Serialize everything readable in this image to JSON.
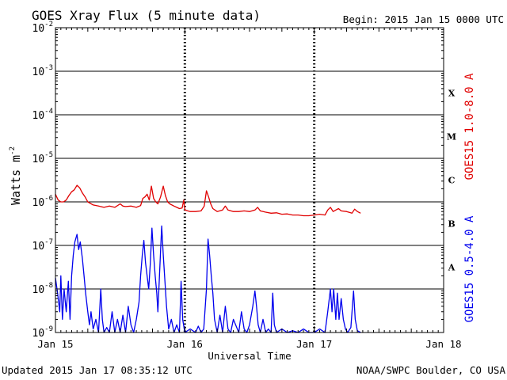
{
  "chart_data": {
    "type": "line",
    "title": "GOES Xray Flux (5 minute data)",
    "begin_label": "Begin:  2015 Jan 15 0000 UTC",
    "xlabel": "Universal Time",
    "ylabel_main": "Watts m",
    "ylabel_exp": "-2",
    "footer_left": "Updated 2015 Jan 17 08:35:12 UTC",
    "footer_right": "NOAA/SWPC Boulder, CO USA",
    "x_unit": "hours since 2015 Jan 15 0000 UTC",
    "xlim": [
      0,
      72
    ],
    "ylim": [
      1e-09,
      0.01
    ],
    "y_scale": "log",
    "x_ticks": [
      {
        "x": 0,
        "label": "Jan 15"
      },
      {
        "x": 24,
        "label": "Jan 16"
      },
      {
        "x": 48,
        "label": "Jan 17"
      },
      {
        "x": 72,
        "label": "Jan 18"
      }
    ],
    "y_ticks": [
      {
        "exp": -9,
        "base": "10",
        "sup": "-9"
      },
      {
        "exp": -8,
        "base": "10",
        "sup": "-8"
      },
      {
        "exp": -7,
        "base": "10",
        "sup": "-7"
      },
      {
        "exp": -6,
        "base": "10",
        "sup": "-6"
      },
      {
        "exp": -5,
        "base": "10",
        "sup": "-5"
      },
      {
        "exp": -4,
        "base": "10",
        "sup": "-4"
      },
      {
        "exp": -3,
        "base": "10",
        "sup": "-3"
      },
      {
        "exp": -2,
        "base": "10",
        "sup": "-2"
      }
    ],
    "flare_classes": [
      {
        "label": "A",
        "exp": -7.5
      },
      {
        "label": "B",
        "exp": -6.5
      },
      {
        "label": "C",
        "exp": -5.5
      },
      {
        "label": "M",
        "exp": -4.5
      },
      {
        "label": "X",
        "exp": -3.5
      }
    ],
    "grid": {
      "horizontal": true,
      "day_dividers": [
        24,
        48
      ]
    },
    "series": [
      {
        "name": "GOES15 1.0-8.0 A",
        "color": "#e00000",
        "points": [
          [
            0.0,
            1.5e-06
          ],
          [
            0.5,
            1.1e-06
          ],
          [
            1.0,
            1e-06
          ],
          [
            1.5,
            1e-06
          ],
          [
            2.0,
            1.1e-06
          ],
          [
            2.5,
            1.4e-06
          ],
          [
            3.0,
            1.7e-06
          ],
          [
            3.5,
            1.9e-06
          ],
          [
            4.0,
            2.4e-06
          ],
          [
            4.5,
            2.1e-06
          ],
          [
            5.0,
            1.6e-06
          ],
          [
            5.5,
            1.3e-06
          ],
          [
            6.0,
            1e-06
          ],
          [
            7.0,
            8.5e-07
          ],
          [
            8.0,
            8e-07
          ],
          [
            9.0,
            7.5e-07
          ],
          [
            10.0,
            8e-07
          ],
          [
            11.0,
            7.5e-07
          ],
          [
            12.0,
            9e-07
          ],
          [
            12.5,
            8e-07
          ],
          [
            13.0,
            7.8e-07
          ],
          [
            14.0,
            8e-07
          ],
          [
            15.0,
            7.5e-07
          ],
          [
            15.8,
            8.2e-07
          ],
          [
            16.2,
            1.2e-06
          ],
          [
            16.6,
            1.3e-06
          ],
          [
            17.0,
            1.5e-06
          ],
          [
            17.4,
            1.1e-06
          ],
          [
            17.8,
            2.3e-06
          ],
          [
            18.2,
            1.2e-06
          ],
          [
            18.6,
            1e-06
          ],
          [
            19.0,
            9e-07
          ],
          [
            19.5,
            1.3e-06
          ],
          [
            20.0,
            2.3e-06
          ],
          [
            20.4,
            1.4e-06
          ],
          [
            20.8,
            1e-06
          ],
          [
            21.2,
            9e-07
          ],
          [
            22.0,
            8e-07
          ],
          [
            22.5,
            7.5e-07
          ],
          [
            23.0,
            7e-07
          ],
          [
            23.5,
            7.2e-07
          ],
          [
            23.8,
            1.1e-06
          ],
          [
            24.0,
            6.5e-07
          ],
          [
            25.0,
            6e-07
          ],
          [
            26.0,
            6e-07
          ],
          [
            27.0,
            6.2e-07
          ],
          [
            27.6,
            8e-07
          ],
          [
            28.0,
            1.8e-06
          ],
          [
            28.4,
            1.3e-06
          ],
          [
            28.8,
            9e-07
          ],
          [
            29.2,
            7e-07
          ],
          [
            30.0,
            6e-07
          ],
          [
            31.0,
            6.5e-07
          ],
          [
            31.5,
            8e-07
          ],
          [
            32.0,
            6.5e-07
          ],
          [
            33.0,
            6e-07
          ],
          [
            34.0,
            6e-07
          ],
          [
            35.0,
            6.2e-07
          ],
          [
            36.0,
            6e-07
          ],
          [
            37.0,
            6.5e-07
          ],
          [
            37.5,
            7.5e-07
          ],
          [
            38.0,
            6.2e-07
          ],
          [
            39.0,
            5.8e-07
          ],
          [
            40.0,
            5.5e-07
          ],
          [
            41.0,
            5.6e-07
          ],
          [
            42.0,
            5.2e-07
          ],
          [
            43.0,
            5.3e-07
          ],
          [
            44.0,
            5e-07
          ],
          [
            45.0,
            5e-07
          ],
          [
            46.0,
            4.8e-07
          ],
          [
            47.0,
            4.8e-07
          ],
          [
            48.0,
            5e-07
          ],
          [
            49.0,
            5.2e-07
          ],
          [
            50.0,
            5e-07
          ],
          [
            50.5,
            6.5e-07
          ],
          [
            51.0,
            7.5e-07
          ],
          [
            51.5,
            6e-07
          ],
          [
            52.0,
            6.5e-07
          ],
          [
            52.5,
            7e-07
          ],
          [
            53.0,
            6.2e-07
          ],
          [
            54.0,
            6e-07
          ],
          [
            55.0,
            5.5e-07
          ],
          [
            55.5,
            6.8e-07
          ],
          [
            56.0,
            6e-07
          ],
          [
            56.6,
            5.5e-07
          ]
        ]
      },
      {
        "name": "GOES15 0.5-4.0 A",
        "color": "#0000ee",
        "points": [
          [
            0.0,
            1.8e-08
          ],
          [
            0.4,
            8e-09
          ],
          [
            0.8,
            3e-09
          ],
          [
            1.0,
            2e-08
          ],
          [
            1.3,
            2e-09
          ],
          [
            1.6,
            1e-08
          ],
          [
            2.0,
            3e-09
          ],
          [
            2.4,
            1.5e-08
          ],
          [
            2.7,
            2e-09
          ],
          [
            3.0,
            2e-08
          ],
          [
            3.3,
            6e-08
          ],
          [
            3.6,
            1.2e-07
          ],
          [
            4.0,
            1.8e-07
          ],
          [
            4.3,
            8e-08
          ],
          [
            4.6,
            1.2e-07
          ],
          [
            5.0,
            5e-08
          ],
          [
            5.3,
            2e-08
          ],
          [
            5.6,
            8e-09
          ],
          [
            6.0,
            3e-09
          ],
          [
            6.3,
            1.5e-09
          ],
          [
            6.6,
            3e-09
          ],
          [
            7.0,
            1.2e-09
          ],
          [
            7.5,
            2e-09
          ],
          [
            8.0,
            1e-09
          ],
          [
            8.4,
            1e-08
          ],
          [
            8.7,
            2e-09
          ],
          [
            9.0,
            1e-09
          ],
          [
            9.5,
            1.3e-09
          ],
          [
            10.0,
            1e-09
          ],
          [
            10.5,
            3e-09
          ],
          [
            11.0,
            1e-09
          ],
          [
            11.5,
            2e-09
          ],
          [
            12.0,
            1e-09
          ],
          [
            12.5,
            2.5e-09
          ],
          [
            13.0,
            1e-09
          ],
          [
            13.5,
            4e-09
          ],
          [
            14.0,
            1.5e-09
          ],
          [
            14.5,
            1e-09
          ],
          [
            15.0,
            2e-09
          ],
          [
            15.5,
            5e-09
          ],
          [
            15.8,
            2e-08
          ],
          [
            16.1,
            6e-08
          ],
          [
            16.4,
            1.3e-07
          ],
          [
            16.7,
            4e-08
          ],
          [
            17.0,
            2e-08
          ],
          [
            17.3,
            1e-08
          ],
          [
            17.6,
            4e-08
          ],
          [
            17.9,
            2.5e-07
          ],
          [
            18.2,
            6e-08
          ],
          [
            18.5,
            2e-08
          ],
          [
            18.8,
            8e-09
          ],
          [
            19.0,
            3e-09
          ],
          [
            19.3,
            2e-08
          ],
          [
            19.7,
            2.8e-07
          ],
          [
            20.0,
            6e-08
          ],
          [
            20.3,
            1.5e-08
          ],
          [
            20.6,
            4e-09
          ],
          [
            21.0,
            1.2e-09
          ],
          [
            21.5,
            2e-09
          ],
          [
            22.0,
            1e-09
          ],
          [
            22.5,
            1.5e-09
          ],
          [
            23.0,
            1e-09
          ],
          [
            23.3,
            1.5e-08
          ],
          [
            23.6,
            2e-09
          ],
          [
            24.0,
            1e-09
          ],
          [
            25.0,
            1.2e-09
          ],
          [
            26.0,
            1e-09
          ],
          [
            26.5,
            1.4e-09
          ],
          [
            27.0,
            1e-09
          ],
          [
            27.5,
            1.2e-09
          ],
          [
            28.0,
            1e-08
          ],
          [
            28.3,
            1.4e-07
          ],
          [
            28.6,
            6e-08
          ],
          [
            28.9,
            2e-08
          ],
          [
            29.2,
            8e-09
          ],
          [
            29.5,
            2e-09
          ],
          [
            30.0,
            1e-09
          ],
          [
            30.5,
            2.5e-09
          ],
          [
            31.0,
            1e-09
          ],
          [
            31.5,
            4e-09
          ],
          [
            32.0,
            1.2e-09
          ],
          [
            32.5,
            1e-09
          ],
          [
            33.0,
            2e-09
          ],
          [
            34.0,
            1e-09
          ],
          [
            34.5,
            3e-09
          ],
          [
            35.0,
            1.2e-09
          ],
          [
            35.5,
            1e-09
          ],
          [
            36.0,
            1.5e-09
          ],
          [
            36.6,
            4e-09
          ],
          [
            37.0,
            9e-09
          ],
          [
            37.3,
            4e-09
          ],
          [
            37.6,
            1.5e-09
          ],
          [
            38.0,
            1e-09
          ],
          [
            38.5,
            2e-09
          ],
          [
            39.0,
            1e-09
          ],
          [
            39.5,
            1.2e-09
          ],
          [
            40.0,
            1e-09
          ],
          [
            40.3,
            8e-09
          ],
          [
            40.6,
            1.5e-09
          ],
          [
            41.0,
            1e-09
          ],
          [
            42.0,
            1.2e-09
          ],
          [
            43.0,
            1e-09
          ],
          [
            44.0,
            1.1e-09
          ],
          [
            45.0,
            1e-09
          ],
          [
            46.0,
            1.2e-09
          ],
          [
            47.0,
            1e-09
          ],
          [
            48.0,
            1e-09
          ],
          [
            49.0,
            1.2e-09
          ],
          [
            50.0,
            1e-09
          ],
          [
            50.5,
            3e-09
          ],
          [
            51.0,
            1e-08
          ],
          [
            51.3,
            3e-09
          ],
          [
            51.6,
            1e-08
          ],
          [
            52.0,
            2e-09
          ],
          [
            52.3,
            8e-09
          ],
          [
            52.6,
            2e-09
          ],
          [
            53.0,
            6e-09
          ],
          [
            53.4,
            2e-09
          ],
          [
            53.8,
            1.2e-09
          ],
          [
            54.2,
            1e-09
          ],
          [
            54.8,
            1.3e-09
          ],
          [
            55.3,
            9e-09
          ],
          [
            55.6,
            2e-09
          ],
          [
            56.0,
            1.1e-09
          ],
          [
            56.6,
            1e-09
          ]
        ]
      }
    ]
  }
}
